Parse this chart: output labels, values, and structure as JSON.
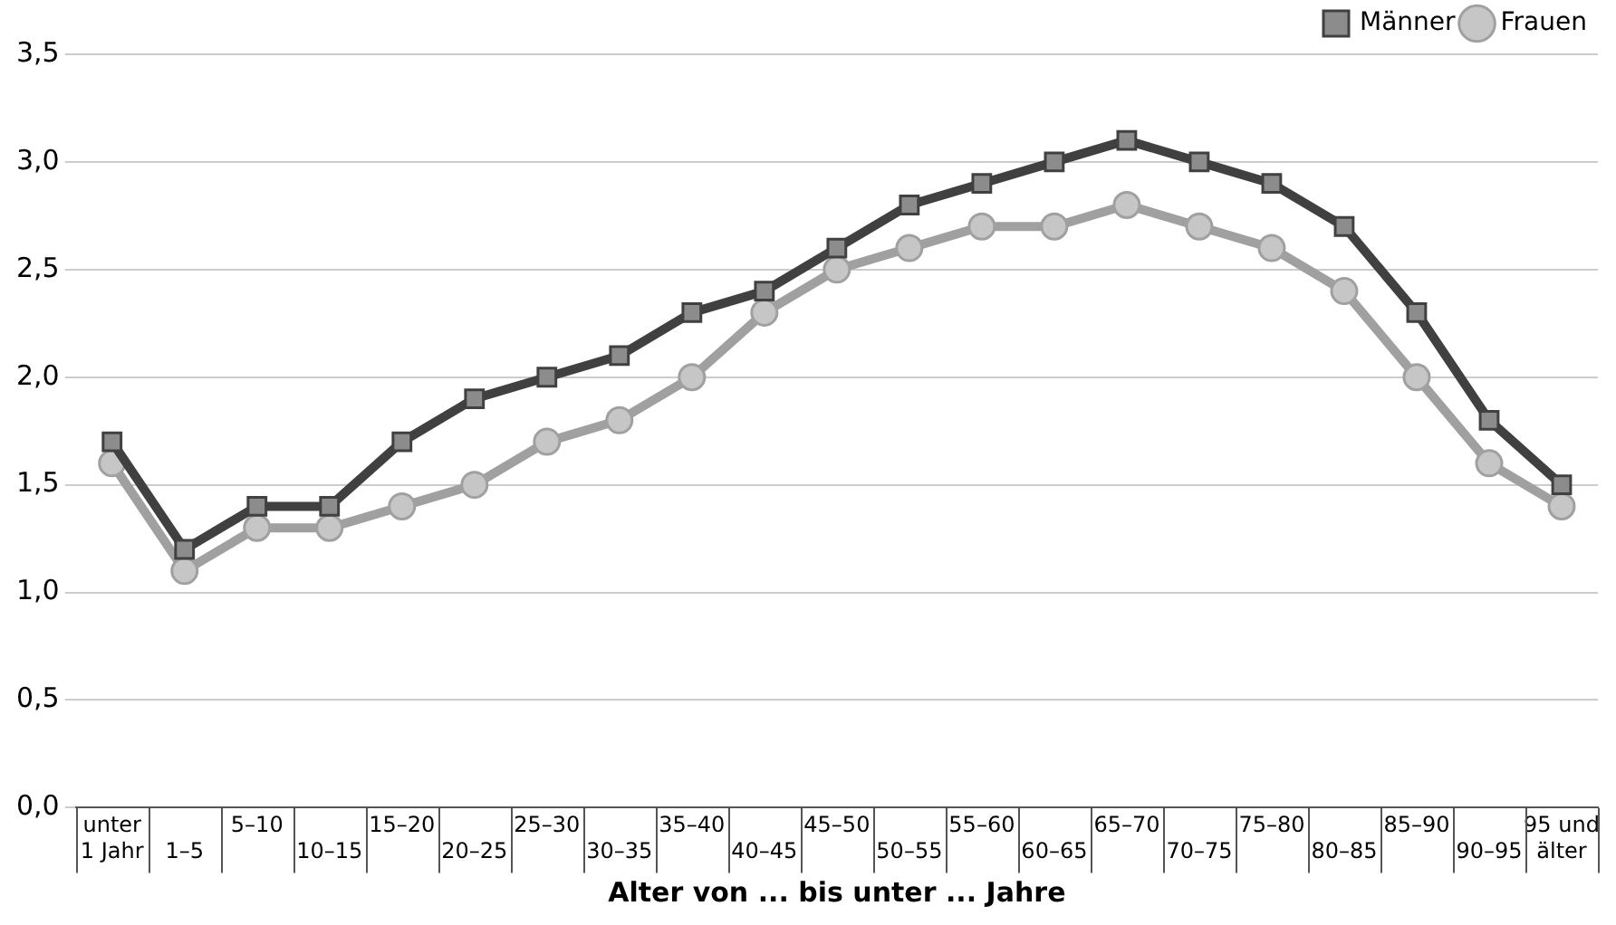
{
  "chart_data": {
    "type": "line",
    "xlabel": "Alter von ... bis unter ... Jahre",
    "categories": [
      "unter 1 Jahr",
      "1–5",
      "5–10",
      "10–15",
      "15–20",
      "20–25",
      "25–30",
      "30–35",
      "35–40",
      "40–45",
      "45–50",
      "50–55",
      "55–60",
      "60–65",
      "65–70",
      "70–75",
      "75–80",
      "80–85",
      "85–90",
      "90–95",
      "95 und älter"
    ],
    "series": [
      {
        "name": "Männer",
        "color": "#404040",
        "marker": "square",
        "values": [
          1.7,
          1.2,
          1.4,
          1.4,
          1.7,
          1.9,
          2.0,
          2.1,
          2.3,
          2.4,
          2.6,
          2.8,
          2.9,
          3.0,
          3.1,
          3.0,
          2.9,
          2.7,
          2.3,
          1.8,
          1.5
        ]
      },
      {
        "name": "Frauen",
        "color": "#a0a0a0",
        "marker": "circle",
        "values": [
          1.6,
          1.1,
          1.3,
          1.3,
          1.4,
          1.5,
          1.7,
          1.8,
          2.0,
          2.3,
          2.5,
          2.6,
          2.7,
          2.7,
          2.8,
          2.7,
          2.6,
          2.4,
          2.0,
          1.6,
          1.4
        ]
      }
    ],
    "ylim": [
      0,
      3.5
    ],
    "yticks": [
      {
        "value": 0,
        "label": "0,0"
      },
      {
        "value": 0.5,
        "label": "0,5"
      },
      {
        "value": 1,
        "label": "1,0"
      },
      {
        "value": 1.5,
        "label": "1,5"
      },
      {
        "value": 2,
        "label": "2,0"
      },
      {
        "value": 2.5,
        "label": "2,5"
      },
      {
        "value": 3,
        "label": "3,0"
      },
      {
        "value": 3.5,
        "label": "3,5"
      }
    ],
    "grid": "y",
    "legend": "top right",
    "line_style": "solid"
  }
}
